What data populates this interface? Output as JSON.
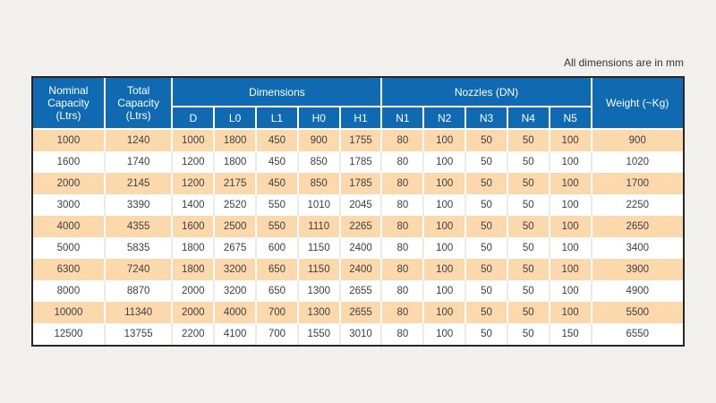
{
  "note": "All dimensions are in mm",
  "colors": {
    "page_bg": "#f1f0ec",
    "header_bg": "#0f6ab1",
    "header_text": "#ffffff",
    "row_alt_bg": "#fcd9ad",
    "row_bg": "#ffffff",
    "cell_text": "#3f3e3e",
    "outer_border": "#262626"
  },
  "table": {
    "header": {
      "nominal": "Nominal\nCapacity\n(Ltrs)",
      "total": "Total\nCapacity\n(Ltrs)",
      "dimensions": "Dimensions",
      "nozzles": "Nozzles (DN)",
      "weight": "Weight (~Kg)"
    },
    "subheaders": [
      "D",
      "L0",
      "L1",
      "H0",
      "H1",
      "N1",
      "N2",
      "N3",
      "N4",
      "N5"
    ]
  },
  "chart_data": {
    "type": "table",
    "note": "All dimensions are in mm",
    "columns": [
      "Nominal Capacity (Ltrs)",
      "Total Capacity (Ltrs)",
      "D",
      "L0",
      "L1",
      "H0",
      "H1",
      "N1",
      "N2",
      "N3",
      "N4",
      "N5",
      "Weight (~Kg)"
    ],
    "column_groups": [
      {
        "label": "Dimensions",
        "span": [
          "D",
          "L0",
          "L1",
          "H0",
          "H1"
        ]
      },
      {
        "label": "Nozzles (DN)",
        "span": [
          "N1",
          "N2",
          "N3",
          "N4",
          "N5"
        ]
      }
    ],
    "rows": [
      [
        1000,
        1240,
        1000,
        1800,
        450,
        900,
        1755,
        80,
        100,
        50,
        50,
        100,
        900
      ],
      [
        1600,
        1740,
        1200,
        1800,
        450,
        850,
        1785,
        80,
        100,
        50,
        50,
        100,
        1020
      ],
      [
        2000,
        2145,
        1200,
        2175,
        450,
        850,
        1785,
        80,
        100,
        50,
        50,
        100,
        1700
      ],
      [
        3000,
        3390,
        1400,
        2520,
        550,
        1010,
        2045,
        80,
        100,
        50,
        50,
        100,
        2250
      ],
      [
        4000,
        4355,
        1600,
        2500,
        550,
        1110,
        2265,
        80,
        100,
        50,
        50,
        100,
        2650
      ],
      [
        5000,
        5835,
        1800,
        2675,
        600,
        1150,
        2400,
        80,
        100,
        50,
        50,
        100,
        3400
      ],
      [
        6300,
        7240,
        1800,
        3200,
        650,
        1150,
        2400,
        80,
        100,
        50,
        50,
        100,
        3900
      ],
      [
        8000,
        8870,
        2000,
        3200,
        650,
        1300,
        2655,
        80,
        100,
        50,
        50,
        100,
        4900
      ],
      [
        10000,
        11340,
        2000,
        4000,
        700,
        1300,
        2655,
        80,
        100,
        50,
        50,
        100,
        5500
      ],
      [
        12500,
        13755,
        2200,
        4100,
        700,
        1550,
        3010,
        80,
        100,
        50,
        50,
        150,
        6550
      ]
    ]
  }
}
